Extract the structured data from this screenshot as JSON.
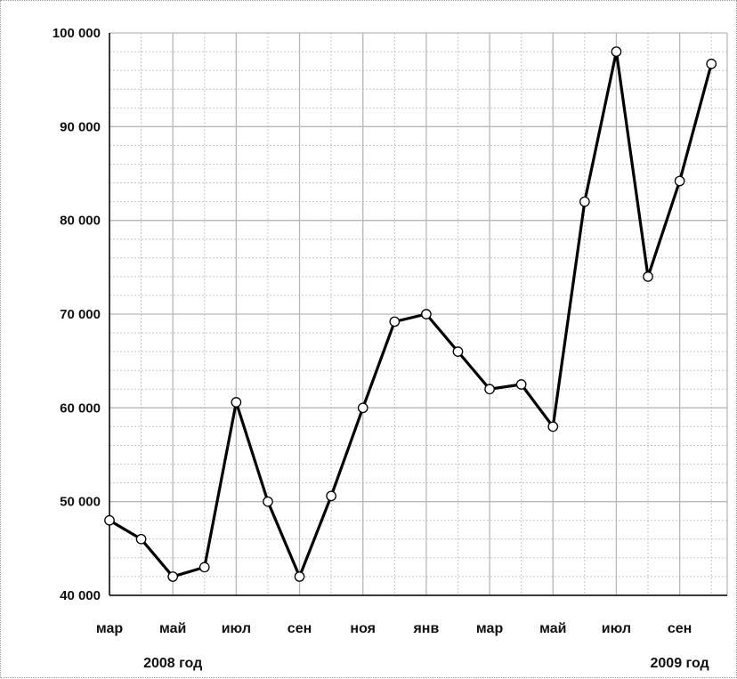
{
  "chart_data": {
    "type": "line",
    "title": "",
    "xlabel": "",
    "ylabel": "",
    "ylim": [
      40000,
      100000
    ],
    "y_ticks": [
      40000,
      50000,
      60000,
      70000,
      80000,
      90000,
      100000
    ],
    "y_tick_labels": [
      "40 000",
      "50 000",
      "60 000",
      "70 000",
      "80 000",
      "90 000",
      "100 000"
    ],
    "grid": true,
    "x": [
      "мар 2008",
      "апр 2008",
      "май 2008",
      "июн 2008",
      "июл 2008",
      "авг 2008",
      "сен 2008",
      "окт 2008",
      "ноя 2008",
      "дек 2008",
      "янв 2009",
      "фев 2009",
      "мар 2009",
      "апр 2009",
      "май 2009",
      "июн 2009",
      "июл 2009",
      "авг 2009",
      "сен 2009",
      "окт 2009"
    ],
    "x_tick_labels": [
      {
        "index": 0,
        "text": "мар"
      },
      {
        "index": 2,
        "text": "май"
      },
      {
        "index": 4,
        "text": "июл"
      },
      {
        "index": 6,
        "text": "сен"
      },
      {
        "index": 8,
        "text": "ноя"
      },
      {
        "index": 10,
        "text": "янв"
      },
      {
        "index": 12,
        "text": "мар"
      },
      {
        "index": 14,
        "text": "май"
      },
      {
        "index": 16,
        "text": "июл"
      },
      {
        "index": 18,
        "text": "сен"
      }
    ],
    "year_labels": [
      {
        "index": 2,
        "text": "2008 год"
      },
      {
        "index": 18,
        "text": "2009 год"
      }
    ],
    "series": [
      {
        "values": [
          48000,
          46000,
          42000,
          43000,
          60600,
          50000,
          42000,
          50600,
          60000,
          69200,
          70000,
          66000,
          62000,
          62500,
          58000,
          82000,
          98000,
          74000,
          84200,
          96700
        ]
      }
    ],
    "colors": {
      "line": "#000000",
      "marker_fill": "#ffffff",
      "grid": "#b8b8b8"
    }
  }
}
